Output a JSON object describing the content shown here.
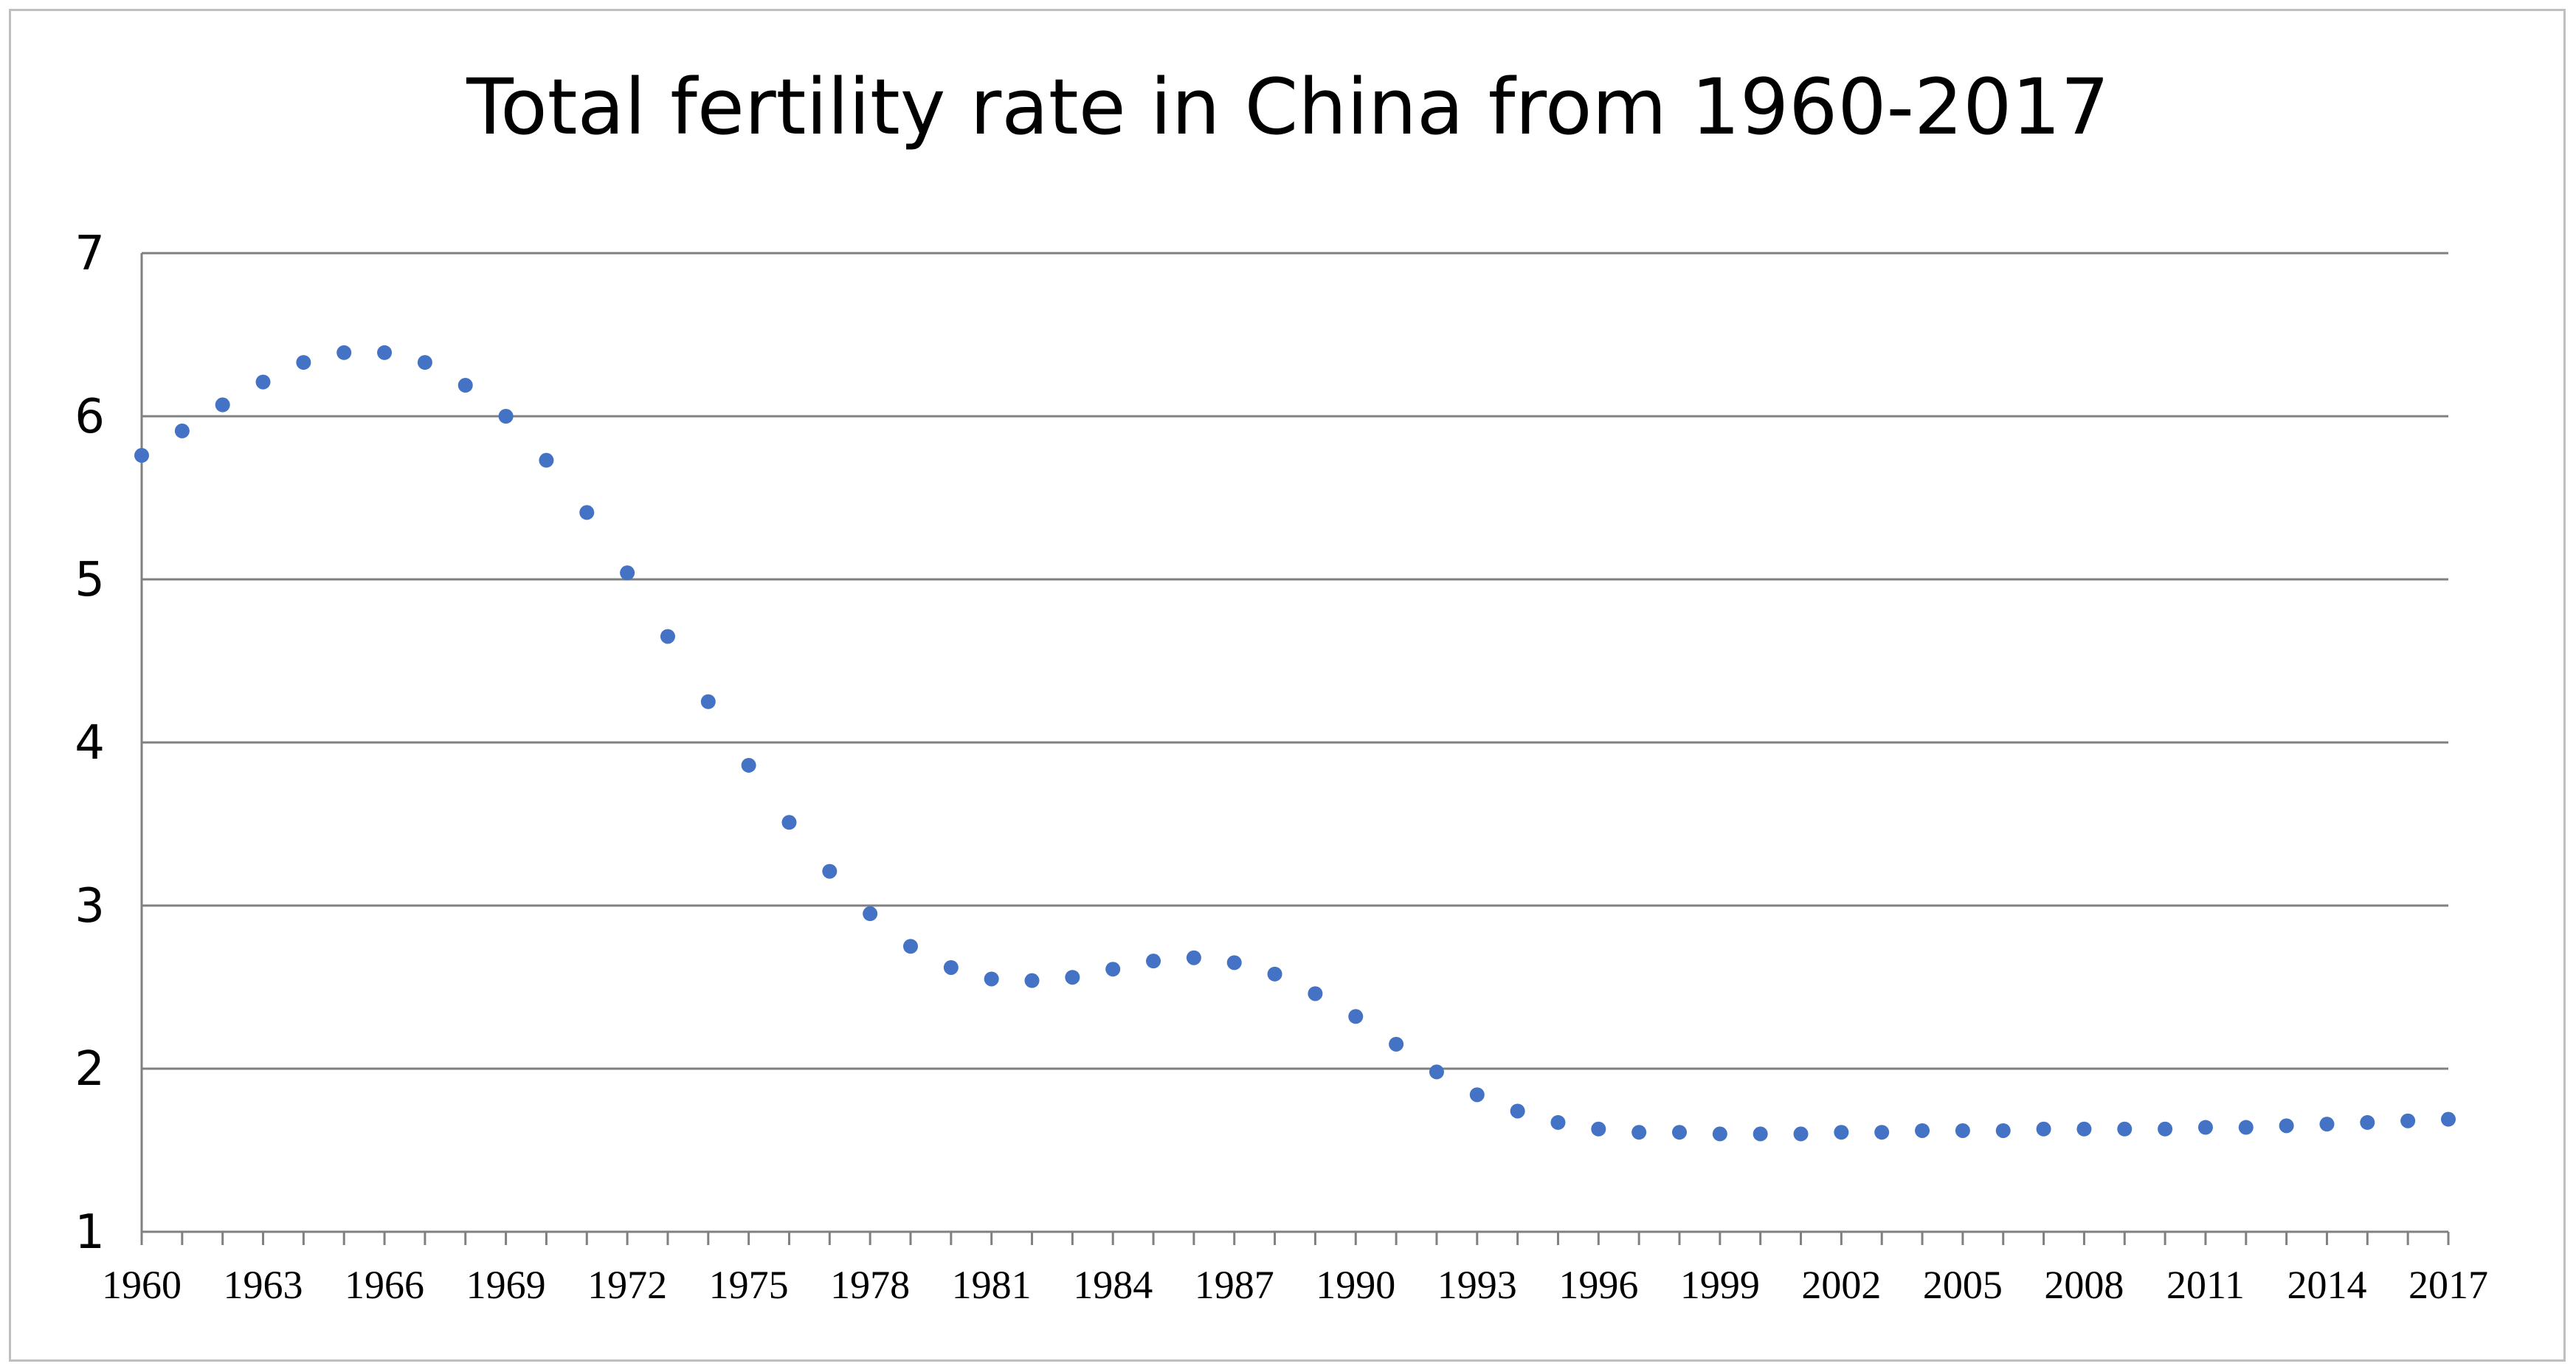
{
  "chart_data": {
    "type": "scatter",
    "title": "Total fertility rate in China from 1960-2017",
    "xlabel": "",
    "ylabel": "",
    "xlim": [
      1960,
      2017
    ],
    "ylim": [
      1,
      7
    ],
    "y_ticks": [
      1,
      2,
      3,
      4,
      5,
      6,
      7
    ],
    "x_tick_labels": [
      "1960",
      "1963",
      "1966",
      "1969",
      "1972",
      "1975",
      "1978",
      "1981",
      "1984",
      "1987",
      "1990",
      "1993",
      "1996",
      "1999",
      "2002",
      "2005",
      "2008",
      "2011",
      "2014",
      "2017"
    ],
    "grid": "horizontal",
    "legend": "none",
    "marker_color": "#4472c4",
    "grid_color": "#808080",
    "x": [
      1960,
      1961,
      1962,
      1963,
      1964,
      1965,
      1966,
      1967,
      1968,
      1969,
      1970,
      1971,
      1972,
      1973,
      1974,
      1975,
      1976,
      1977,
      1978,
      1979,
      1980,
      1981,
      1982,
      1983,
      1984,
      1985,
      1986,
      1987,
      1988,
      1989,
      1990,
      1991,
      1992,
      1993,
      1994,
      1995,
      1996,
      1997,
      1998,
      1999,
      2000,
      2001,
      2002,
      2003,
      2004,
      2005,
      2006,
      2007,
      2008,
      2009,
      2010,
      2011,
      2012,
      2013,
      2014,
      2015,
      2016,
      2017
    ],
    "y": [
      5.76,
      5.91,
      6.07,
      6.21,
      6.33,
      6.39,
      6.39,
      6.33,
      6.19,
      6.0,
      5.73,
      5.41,
      5.04,
      4.65,
      4.25,
      3.86,
      3.51,
      3.21,
      2.95,
      2.75,
      2.62,
      2.55,
      2.54,
      2.56,
      2.61,
      2.66,
      2.68,
      2.65,
      2.58,
      2.46,
      2.32,
      2.15,
      1.98,
      1.84,
      1.74,
      1.67,
      1.63,
      1.61,
      1.61,
      1.6,
      1.6,
      1.6,
      1.61,
      1.61,
      1.62,
      1.62,
      1.62,
      1.63,
      1.63,
      1.63,
      1.63,
      1.64,
      1.64,
      1.65,
      1.66,
      1.67,
      1.68,
      1.69
    ]
  }
}
